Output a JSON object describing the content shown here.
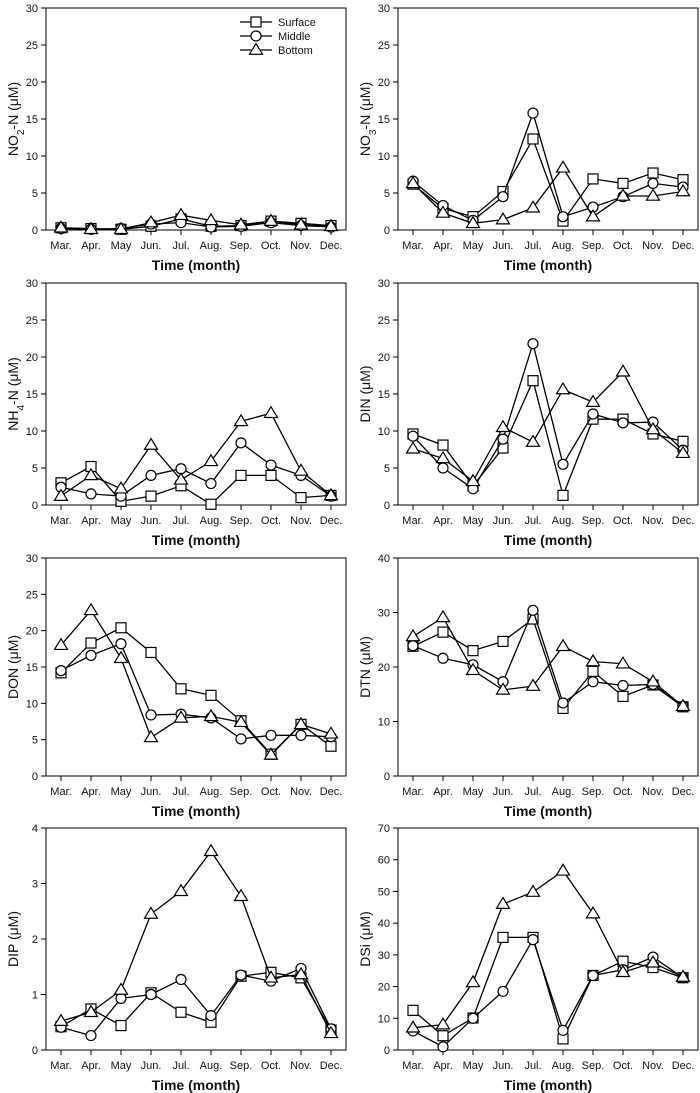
{
  "chart_data": [
    {
      "type": "line",
      "panel": "NO2-N",
      "ylabel_pre": "NO",
      "ylabel_sub": "2",
      "ylabel_post": "-N (μM)",
      "xlabel": "Time (month)",
      "ylim": [
        0,
        30
      ],
      "yticks": [
        0,
        5,
        10,
        15,
        20,
        25,
        30
      ],
      "categories": [
        "Mar.",
        "Apr.",
        "May",
        "Jun.",
        "Jul.",
        "Aug.",
        "Sep.",
        "Oct.",
        "Nov.",
        "Dec."
      ],
      "series": [
        {
          "name": "Surface",
          "values": [
            0.3,
            0.2,
            0.1,
            0.5,
            1.5,
            0.5,
            0.6,
            1.2,
            0.9,
            0.6
          ]
        },
        {
          "name": "Middle",
          "values": [
            0.2,
            0.1,
            0.2,
            0.8,
            1.0,
            0.4,
            0.5,
            1.0,
            0.6,
            0.4
          ]
        },
        {
          "name": "Bottom",
          "values": [
            0.3,
            0.1,
            0.1,
            1.0,
            2.0,
            1.3,
            0.7,
            1.2,
            0.7,
            0.5
          ]
        }
      ],
      "legend": {
        "position": "top-right",
        "entries": [
          "Surface",
          "Middle",
          "Bottom"
        ]
      }
    },
    {
      "type": "line",
      "panel": "NO3-N",
      "ylabel_pre": "NO",
      "ylabel_sub": "3",
      "ylabel_post": "-N (μM)",
      "xlabel": "Time (month)",
      "ylim": [
        0,
        30
      ],
      "yticks": [
        0,
        5,
        10,
        15,
        20,
        25,
        30
      ],
      "categories": [
        "Mar.",
        "Apr.",
        "May",
        "Jun.",
        "Jul.",
        "Aug.",
        "Sep.",
        "Oct.",
        "Nov.",
        "Dec."
      ],
      "series": [
        {
          "name": "Surface",
          "values": [
            6.2,
            2.9,
            1.8,
            5.2,
            12.3,
            1.2,
            6.9,
            6.3,
            7.7,
            6.8
          ]
        },
        {
          "name": "Middle",
          "values": [
            6.6,
            3.3,
            1.3,
            4.5,
            15.8,
            1.8,
            3.1,
            4.5,
            6.3,
            5.8
          ]
        },
        {
          "name": "Bottom",
          "values": [
            6.3,
            2.3,
            0.9,
            1.4,
            3.0,
            8.4,
            1.8,
            4.6,
            4.6,
            5.2
          ]
        }
      ]
    },
    {
      "type": "line",
      "panel": "NH4-N",
      "ylabel_pre": "NH",
      "ylabel_sub": "4",
      "ylabel_post": "-N (μM)",
      "xlabel": "Time (month)",
      "ylim": [
        0,
        30
      ],
      "yticks": [
        0,
        5,
        10,
        15,
        20,
        25,
        30
      ],
      "categories": [
        "Mar.",
        "Apr.",
        "May",
        "Jun.",
        "Jul.",
        "Aug.",
        "Sep.",
        "Oct.",
        "Nov.",
        "Dec."
      ],
      "series": [
        {
          "name": "Surface",
          "values": [
            3.0,
            5.2,
            0.5,
            1.2,
            2.6,
            0.1,
            4.0,
            4.0,
            1.0,
            1.3
          ]
        },
        {
          "name": "Middle",
          "values": [
            2.4,
            1.5,
            1.2,
            4.0,
            4.9,
            2.9,
            8.4,
            5.4,
            4.0,
            1.2
          ]
        },
        {
          "name": "Bottom",
          "values": [
            1.2,
            4.0,
            2.2,
            8.1,
            3.4,
            5.9,
            11.3,
            12.4,
            4.6,
            1.3
          ]
        }
      ]
    },
    {
      "type": "line",
      "panel": "DIN",
      "ylabel_pre": "DIN (μM)",
      "ylabel_sub": "",
      "ylabel_post": "",
      "xlabel": "Time (month)",
      "ylim": [
        0,
        30
      ],
      "yticks": [
        0,
        5,
        10,
        15,
        20,
        25,
        30
      ],
      "categories": [
        "Mar.",
        "Apr.",
        "May",
        "Jun.",
        "Jul.",
        "Aug.",
        "Sep.",
        "Oct.",
        "Nov.",
        "Dec."
      ],
      "series": [
        {
          "name": "Surface",
          "values": [
            9.6,
            8.1,
            2.6,
            7.7,
            16.8,
            1.3,
            11.6,
            11.6,
            9.6,
            8.6
          ]
        },
        {
          "name": "Middle",
          "values": [
            9.3,
            5.0,
            2.2,
            8.9,
            21.8,
            5.5,
            12.3,
            11.1,
            11.2,
            7.4
          ]
        },
        {
          "name": "Bottom",
          "values": [
            7.6,
            6.3,
            3.2,
            10.5,
            8.5,
            15.6,
            13.9,
            18.0,
            10.2,
            7.0
          ]
        }
      ]
    },
    {
      "type": "line",
      "panel": "DON",
      "ylabel_pre": "DON (μM)",
      "ylabel_sub": "",
      "ylabel_post": "",
      "xlabel": "Time (month)",
      "ylim": [
        0,
        30
      ],
      "yticks": [
        0,
        5,
        10,
        15,
        20,
        25,
        30
      ],
      "categories": [
        "Mar.",
        "Apr.",
        "May",
        "Jun.",
        "Jul.",
        "Aug.",
        "Sep.",
        "Oct.",
        "Nov.",
        "Dec."
      ],
      "series": [
        {
          "name": "Surface",
          "values": [
            14.2,
            18.3,
            20.4,
            17.0,
            12.0,
            11.1,
            7.6,
            3.0,
            7.1,
            4.1
          ]
        },
        {
          "name": "Middle",
          "values": [
            14.5,
            16.6,
            18.2,
            8.4,
            8.5,
            8.0,
            5.1,
            5.6,
            5.6,
            5.4
          ]
        },
        {
          "name": "Bottom",
          "values": [
            18.0,
            22.8,
            16.2,
            5.3,
            8.0,
            8.2,
            7.4,
            2.9,
            7.1,
            5.8
          ]
        }
      ]
    },
    {
      "type": "line",
      "panel": "DTN",
      "ylabel_pre": "DTN (μM)",
      "ylabel_sub": "",
      "ylabel_post": "",
      "xlabel": "Time (month)",
      "ylim": [
        0,
        40
      ],
      "yticks": [
        0,
        10,
        20,
        30,
        40
      ],
      "categories": [
        "Mar.",
        "Apr.",
        "May",
        "Jun.",
        "Jul.",
        "Aug.",
        "Sep.",
        "Oct.",
        "Nov.",
        "Dec."
      ],
      "series": [
        {
          "name": "Surface",
          "values": [
            23.8,
            26.4,
            23.0,
            24.7,
            28.8,
            12.4,
            19.2,
            14.6,
            16.7,
            12.7
          ]
        },
        {
          "name": "Middle",
          "values": [
            23.9,
            21.6,
            20.4,
            17.3,
            30.4,
            13.4,
            17.3,
            16.6,
            16.8,
            12.8
          ]
        },
        {
          "name": "Bottom",
          "values": [
            25.6,
            29.1,
            19.4,
            15.8,
            16.5,
            23.8,
            21.0,
            20.6,
            17.3,
            12.8
          ]
        }
      ]
    },
    {
      "type": "line",
      "panel": "DIP",
      "ylabel_pre": "DIP (μM)",
      "ylabel_sub": "",
      "ylabel_post": "",
      "xlabel": "Time (month)",
      "ylim": [
        0,
        4
      ],
      "yticks": [
        0,
        1,
        2,
        3,
        4
      ],
      "categories": [
        "Mar.",
        "Apr.",
        "May",
        "Jun.",
        "Jul.",
        "Aug.",
        "Sep.",
        "Oct.",
        "Nov.",
        "Dec."
      ],
      "series": [
        {
          "name": "Surface",
          "values": [
            0.42,
            0.74,
            0.44,
            1.03,
            0.68,
            0.5,
            1.33,
            1.4,
            1.3,
            0.36
          ]
        },
        {
          "name": "Middle",
          "values": [
            0.41,
            0.26,
            0.93,
            1.0,
            1.27,
            0.62,
            1.35,
            1.24,
            1.47,
            0.38
          ]
        },
        {
          "name": "Bottom",
          "values": [
            0.52,
            0.68,
            1.08,
            2.45,
            2.86,
            3.58,
            2.77,
            1.3,
            1.36,
            0.3
          ]
        }
      ]
    },
    {
      "type": "line",
      "panel": "DSi",
      "ylabel_pre": "DSi (μM)",
      "ylabel_sub": "",
      "ylabel_post": "",
      "xlabel": "Time (month)",
      "ylim": [
        0,
        70
      ],
      "yticks": [
        0,
        10,
        20,
        30,
        40,
        50,
        60,
        70
      ],
      "categories": [
        "Mar.",
        "Apr.",
        "May",
        "Jun.",
        "Jul.",
        "Aug.",
        "Sep.",
        "Oct.",
        "Nov.",
        "Dec."
      ],
      "series": [
        {
          "name": "Surface",
          "values": [
            12.5,
            4.5,
            10.1,
            35.5,
            35.5,
            3.5,
            23.5,
            28.0,
            26.0,
            22.8
          ]
        },
        {
          "name": "Middle",
          "values": [
            6.0,
            1.0,
            10.0,
            18.5,
            34.8,
            6.2,
            23.5,
            25.3,
            29.3,
            22.8
          ]
        },
        {
          "name": "Bottom",
          "values": [
            7.0,
            8.0,
            21.3,
            46.0,
            49.8,
            56.5,
            43.0,
            24.5,
            27.5,
            23.0
          ]
        }
      ]
    }
  ]
}
